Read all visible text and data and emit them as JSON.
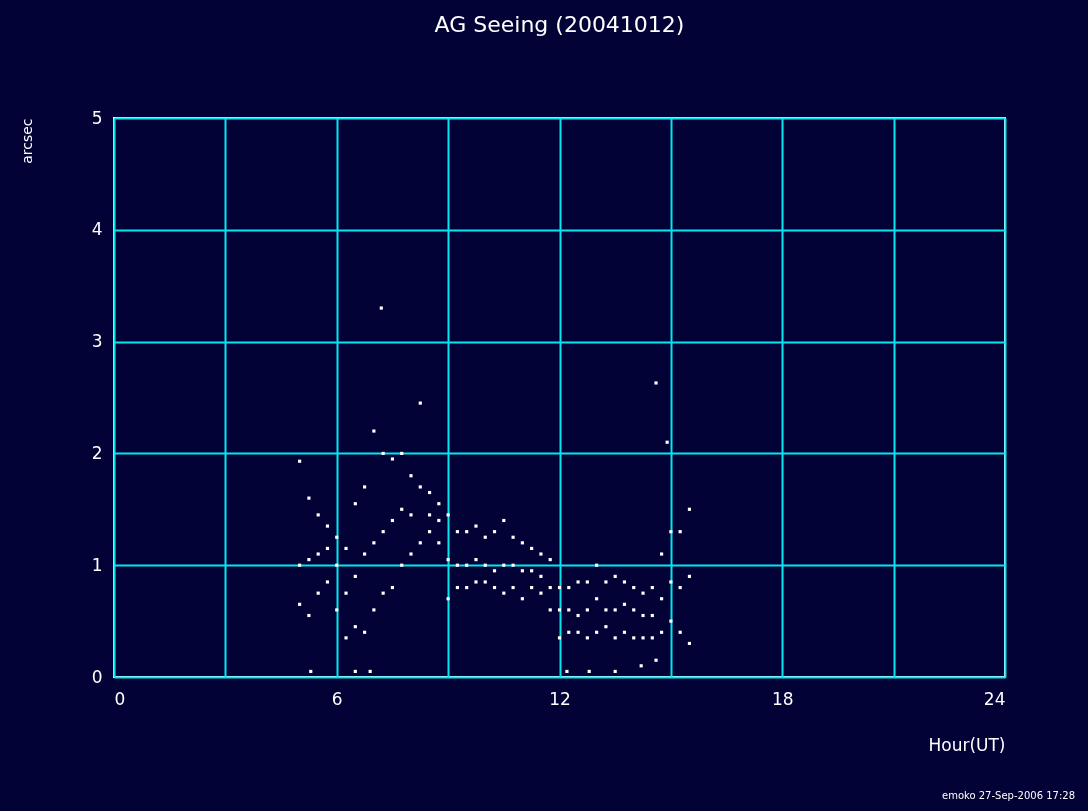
{
  "chart_data": {
    "type": "scatter",
    "title": "AG Seeing   (20041012)",
    "xlabel": "Hour(UT)",
    "ylabel": "arcsec",
    "annotations": [
      "emoko 27-Sep-2006 17:28"
    ],
    "xlim": [
      0,
      24
    ],
    "ylim": [
      0,
      5
    ],
    "xticks": [
      0,
      {
        "value": 3,
        "label": null
      },
      6,
      {
        "value": 9,
        "label": null
      },
      12,
      {
        "value": 15,
        "label": null
      },
      18,
      {
        "value": 21,
        "label": null
      },
      24
    ],
    "yticks": [
      0,
      1,
      2,
      3,
      4,
      5
    ],
    "grid": true,
    "marker": "square",
    "series": [
      {
        "color": "#ffffff",
        "x": [
          5.0,
          5.0,
          5.0,
          5.25,
          5.25,
          5.25,
          5.5,
          5.5,
          5.5,
          5.75,
          5.75,
          5.75,
          6.0,
          6.0,
          6.0,
          6.25,
          6.25,
          6.25,
          6.5,
          6.5,
          6.5,
          6.75,
          6.75,
          6.75,
          7.0,
          7.0,
          7.0,
          7.25,
          7.25,
          7.25,
          7.5,
          7.5,
          7.5,
          7.75,
          7.75,
          7.75,
          8.0,
          8.0,
          8.0,
          8.25,
          8.25,
          8.25,
          8.5,
          8.5,
          8.5,
          8.75,
          8.75,
          8.75,
          9.0,
          9.0,
          9.0,
          9.25,
          9.25,
          9.25,
          9.5,
          9.5,
          9.5,
          9.75,
          9.75,
          9.75,
          10.0,
          10.0,
          10.0,
          10.25,
          10.25,
          10.25,
          10.5,
          10.5,
          10.5,
          10.75,
          10.75,
          10.75,
          11.0,
          11.0,
          11.0,
          11.25,
          11.25,
          11.25,
          11.5,
          11.5,
          11.5,
          11.75,
          11.75,
          11.75,
          12.0,
          12.0,
          12.0,
          12.25,
          12.25,
          12.25,
          12.5,
          12.5,
          12.5,
          12.75,
          12.75,
          12.75,
          13.0,
          13.0,
          13.0,
          13.25,
          13.25,
          13.25,
          13.5,
          13.5,
          13.5,
          13.75,
          13.75,
          13.75,
          14.0,
          14.0,
          14.0,
          14.25,
          14.25,
          14.25,
          14.5,
          14.5,
          14.5,
          14.75,
          14.75,
          14.75,
          15.0,
          15.0,
          15.0,
          15.25,
          15.25,
          15.25,
          15.5,
          15.5,
          15.5,
          7.2,
          14.6,
          14.9,
          12.2,
          12.8,
          13.5,
          14.2,
          14.6,
          6.5,
          6.9,
          5.3
        ],
        "values": [
          0.65,
          1.0,
          1.93,
          0.55,
          1.05,
          1.6,
          0.75,
          1.1,
          1.45,
          0.85,
          1.15,
          1.35,
          0.6,
          1.0,
          1.25,
          0.35,
          0.75,
          1.15,
          0.45,
          0.9,
          1.55,
          0.4,
          1.1,
          1.7,
          0.6,
          1.2,
          2.2,
          0.75,
          1.3,
          2.0,
          0.8,
          1.4,
          1.95,
          1.0,
          1.5,
          2.0,
          1.1,
          1.45,
          1.8,
          1.2,
          1.7,
          2.45,
          1.3,
          1.45,
          1.65,
          1.2,
          1.4,
          1.55,
          0.7,
          1.05,
          1.45,
          0.8,
          1.0,
          1.3,
          0.8,
          1.0,
          1.3,
          0.85,
          1.05,
          1.35,
          0.85,
          1.0,
          1.25,
          0.8,
          0.95,
          1.3,
          0.75,
          1.0,
          1.4,
          0.8,
          1.0,
          1.25,
          0.7,
          0.95,
          1.2,
          0.8,
          0.95,
          1.15,
          0.75,
          0.9,
          1.1,
          0.6,
          0.8,
          1.05,
          0.35,
          0.6,
          0.8,
          0.4,
          0.6,
          0.8,
          0.4,
          0.55,
          0.85,
          0.35,
          0.6,
          0.85,
          0.4,
          0.7,
          1.0,
          0.45,
          0.6,
          0.85,
          0.35,
          0.6,
          0.9,
          0.4,
          0.65,
          0.85,
          0.35,
          0.6,
          0.8,
          0.35,
          0.55,
          0.75,
          0.35,
          0.55,
          0.8,
          0.4,
          0.7,
          1.1,
          0.5,
          0.85,
          1.3,
          0.4,
          0.8,
          1.3,
          0.3,
          0.9,
          1.5,
          3.3,
          2.63,
          2.1,
          0.05,
          0.05,
          0.05,
          0.1,
          0.15,
          0.05,
          0.05,
          0.05
        ]
      }
    ]
  }
}
